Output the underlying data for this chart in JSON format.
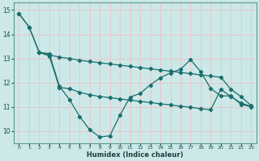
{
  "xlabel": "Humidex (Indice chaleur)",
  "bg_color": "#cce8e8",
  "grid_color": "#e8c8c8",
  "line_color": "#1a6e6e",
  "xlim": [
    -0.5,
    23.5
  ],
  "ylim": [
    9.5,
    15.3
  ],
  "yticks": [
    10,
    11,
    12,
    13,
    14,
    15
  ],
  "xticks": [
    0,
    1,
    2,
    3,
    4,
    5,
    6,
    7,
    8,
    9,
    10,
    11,
    12,
    13,
    14,
    15,
    16,
    17,
    18,
    19,
    20,
    21,
    22,
    23
  ],
  "line1_x": [
    0,
    1,
    2,
    3,
    4,
    5,
    6,
    7,
    8,
    9,
    10,
    11,
    12,
    13,
    14,
    15,
    16,
    17,
    18,
    19,
    20,
    21,
    22,
    23
  ],
  "line1_y": [
    14.85,
    14.3,
    13.25,
    13.2,
    11.85,
    11.3,
    10.6,
    10.05,
    9.75,
    9.8,
    10.65,
    11.4,
    11.55,
    11.9,
    12.2,
    12.4,
    12.55,
    12.95,
    12.45,
    11.75,
    11.45,
    11.45,
    11.1,
    11.0
  ],
  "line2_x": [
    2,
    3,
    4,
    5,
    6,
    7,
    8,
    9,
    10,
    11,
    12,
    13,
    14,
    15,
    16,
    17,
    18,
    19,
    20,
    21,
    22,
    23
  ],
  "line2_y": [
    13.25,
    13.1,
    11.8,
    11.75,
    11.6,
    11.5,
    11.42,
    11.38,
    11.32,
    11.28,
    11.22,
    11.18,
    11.12,
    11.08,
    11.02,
    10.98,
    10.92,
    10.88,
    11.72,
    11.42,
    11.15,
    11.02
  ],
  "line3_x": [
    0,
    1,
    2,
    3,
    4,
    5,
    6,
    7,
    8,
    9,
    10,
    11,
    12,
    13,
    14,
    15,
    16,
    17,
    18,
    19,
    20,
    21,
    22,
    23
  ],
  "line3_y": [
    14.85,
    14.3,
    13.25,
    13.15,
    13.05,
    13.0,
    12.92,
    12.87,
    12.82,
    12.77,
    12.72,
    12.67,
    12.62,
    12.57,
    12.52,
    12.47,
    12.42,
    12.37,
    12.32,
    12.27,
    12.22,
    11.72,
    11.42,
    11.05
  ]
}
